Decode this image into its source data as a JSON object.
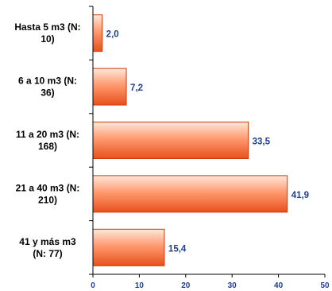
{
  "chart_data": {
    "type": "bar",
    "orientation": "horizontal",
    "categories": [
      [
        "Hasta 5 m3 (N:",
        "10)"
      ],
      [
        "6 a 10 m3 (N:",
        "36)"
      ],
      [
        "11 a 20 m3 (N:",
        "168)"
      ],
      [
        "21 a 40 m3 (N:",
        "210)"
      ],
      [
        "41 y más m3",
        "(N: 77)"
      ]
    ],
    "values": [
      2.0,
      7.2,
      33.5,
      41.9,
      15.4
    ],
    "value_labels": [
      "2,0",
      "7,2",
      "33,5",
      "41,9",
      "15,4"
    ],
    "xlim": [
      0,
      50
    ],
    "xticks": [
      0,
      10,
      20,
      30,
      40,
      50
    ],
    "title": "",
    "xlabel": "",
    "ylabel": "",
    "grid": false,
    "colors": {
      "bar_light": "#ffe8dc",
      "bar_mid": "#ff9a70",
      "bar_dark": "#e8501c",
      "bar_stroke": "#cc3a10",
      "value_label": "#1f3f8f",
      "tick_label": "#1f3f8f",
      "axis": "#000000"
    }
  }
}
